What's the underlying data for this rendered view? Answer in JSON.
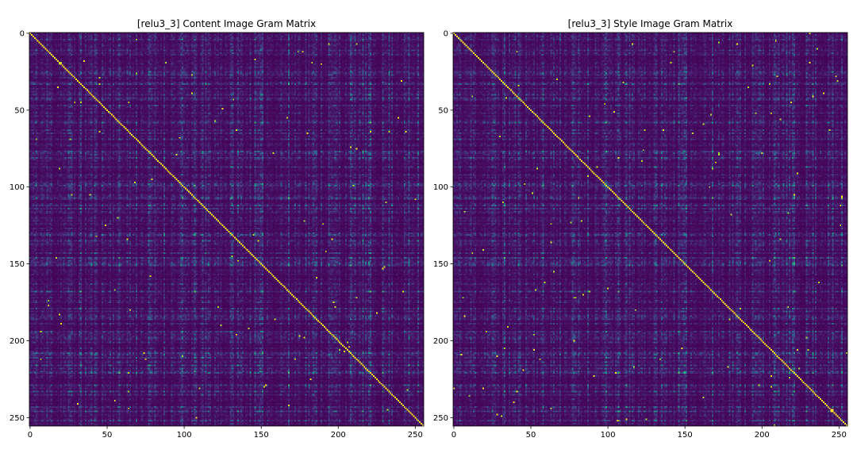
{
  "chart_data": [
    {
      "type": "heatmap",
      "title": "[relu3_3] Content Image Gram Matrix",
      "size": 256,
      "colormap": "viridis",
      "xlim": [
        -0.5,
        255.5
      ],
      "ylim": [
        255.5,
        -0.5
      ],
      "xticks": [
        0,
        50,
        100,
        150,
        200,
        250
      ],
      "yticks": [
        0,
        50,
        100,
        150,
        200,
        250
      ],
      "diagonal": "bright (max values)",
      "grid": false,
      "seed": 11
    },
    {
      "type": "heatmap",
      "title": "[relu3_3] Style Image Gram Matrix",
      "size": 256,
      "colormap": "viridis",
      "xlim": [
        -0.5,
        255.5
      ],
      "ylim": [
        255.5,
        -0.5
      ],
      "xticks": [
        0,
        50,
        100,
        150,
        200,
        250
      ],
      "yticks": [
        0,
        50,
        100,
        150,
        200,
        250
      ],
      "diagonal": "bright (max values)",
      "grid": false,
      "seed": 11
    }
  ]
}
